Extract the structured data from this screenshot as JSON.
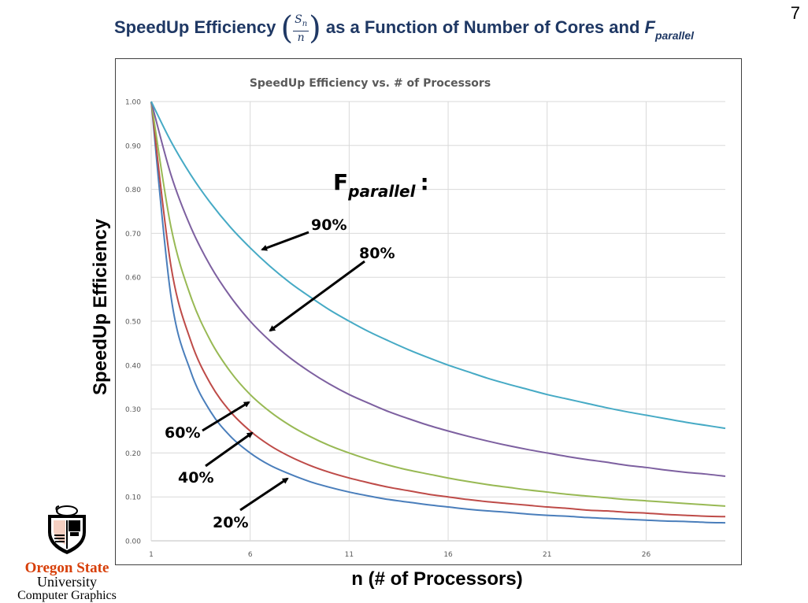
{
  "slide": {
    "title_prefix": "SpeedUp Efficiency",
    "title_frac_num": "S",
    "title_frac_num_sub": "n",
    "title_frac_den": "n",
    "title_middle": "as a Function of Number of Cores and",
    "title_F": "F",
    "title_F_sub": "parallel",
    "page_number": "7"
  },
  "logo": {
    "line1": "Oregon State",
    "line2": "University",
    "line3": "Computer Graphics"
  },
  "annotations": {
    "fparallel_label": "F",
    "fparallel_sub": "parallel",
    "fparallel_colon": ":",
    "labels": [
      {
        "text": "90%",
        "series": "90%"
      },
      {
        "text": "80%",
        "series": "80%"
      },
      {
        "text": "60%",
        "series": "60%"
      },
      {
        "text": "40%",
        "series": "40%"
      },
      {
        "text": "20%",
        "series": "20%"
      }
    ]
  },
  "chart_data": {
    "type": "line",
    "title": "SpeedUp Efficiency vs. # of Processors",
    "xlabel": "n (# of Processors)",
    "ylabel": "SpeedUp Efficiency",
    "xlim": [
      1,
      30
    ],
    "ylim": [
      0,
      1
    ],
    "x_ticks": [
      "1",
      "6",
      "11",
      "16",
      "21",
      "26"
    ],
    "y_ticks": [
      "0.00",
      "0.10",
      "0.20",
      "0.30",
      "0.40",
      "0.50",
      "0.60",
      "0.70",
      "0.80",
      "0.90",
      "1.00"
    ],
    "grid": true,
    "legend": "none",
    "x": [
      1,
      2,
      3,
      4,
      5,
      6,
      7,
      8,
      9,
      10,
      11,
      12,
      13,
      14,
      15,
      16,
      17,
      18,
      19,
      20,
      21,
      22,
      23,
      24,
      25,
      26,
      27,
      28,
      29,
      30
    ],
    "series": [
      {
        "name": "20%",
        "color": "#4a7ebb",
        "values": [
          1.0,
          0.556,
          0.385,
          0.294,
          0.238,
          0.2,
          0.172,
          0.152,
          0.135,
          0.122,
          0.111,
          0.102,
          0.094,
          0.088,
          0.082,
          0.077,
          0.072,
          0.068,
          0.065,
          0.061,
          0.058,
          0.056,
          0.053,
          0.051,
          0.049,
          0.047,
          0.045,
          0.044,
          0.042,
          0.041
        ]
      },
      {
        "name": "40%",
        "color": "#be4b48",
        "values": [
          1.0,
          0.625,
          0.455,
          0.357,
          0.294,
          0.25,
          0.217,
          0.192,
          0.172,
          0.156,
          0.143,
          0.132,
          0.122,
          0.114,
          0.106,
          0.1,
          0.094,
          0.089,
          0.085,
          0.081,
          0.077,
          0.074,
          0.07,
          0.068,
          0.065,
          0.063,
          0.06,
          0.058,
          0.056,
          0.055
        ]
      },
      {
        "name": "60%",
        "color": "#98b954",
        "values": [
          1.0,
          0.714,
          0.556,
          0.455,
          0.385,
          0.333,
          0.294,
          0.263,
          0.238,
          0.217,
          0.2,
          0.185,
          0.172,
          0.161,
          0.152,
          0.143,
          0.135,
          0.128,
          0.122,
          0.116,
          0.111,
          0.106,
          0.102,
          0.098,
          0.094,
          0.091,
          0.088,
          0.085,
          0.082,
          0.079
        ]
      },
      {
        "name": "80%",
        "color": "#7d60a0",
        "values": [
          1.0,
          0.833,
          0.714,
          0.625,
          0.556,
          0.5,
          0.455,
          0.417,
          0.385,
          0.357,
          0.333,
          0.313,
          0.294,
          0.278,
          0.263,
          0.25,
          0.238,
          0.227,
          0.217,
          0.208,
          0.2,
          0.192,
          0.185,
          0.179,
          0.172,
          0.167,
          0.161,
          0.156,
          0.152,
          0.147
        ]
      },
      {
        "name": "90%",
        "color": "#46aac5",
        "values": [
          1.0,
          0.909,
          0.833,
          0.769,
          0.714,
          0.667,
          0.625,
          0.588,
          0.556,
          0.526,
          0.5,
          0.476,
          0.455,
          0.435,
          0.417,
          0.4,
          0.385,
          0.37,
          0.357,
          0.345,
          0.333,
          0.323,
          0.313,
          0.303,
          0.294,
          0.286,
          0.278,
          0.27,
          0.263,
          0.256
        ]
      }
    ]
  }
}
